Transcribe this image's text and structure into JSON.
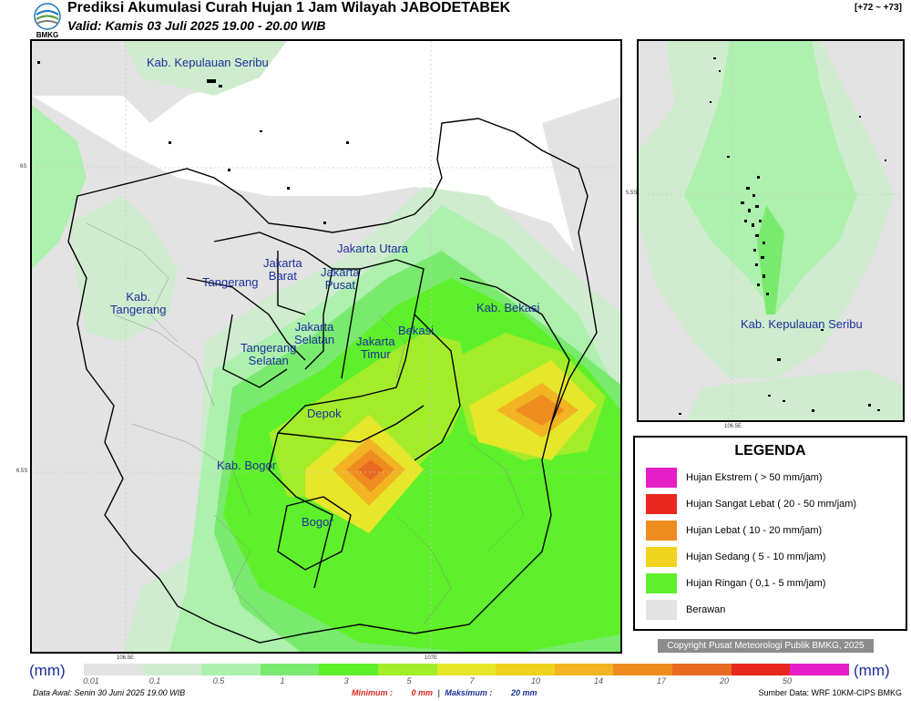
{
  "header": {
    "logo_text": "BMKG",
    "title": "Prediksi Akumulasi Curah Hujan 1 Jam Wilayah JABODETABEK",
    "valid": "Valid: Kamis 03 Juli 2025 19.00 - 20.00 WIB",
    "range": "[+72 ~ +73]"
  },
  "main_map": {
    "labels": {
      "kepulauan_seribu": "Kab. Kepulauan Seribu",
      "kab_tangerang": "Kab.\nTangerang",
      "tangerang": "Tangerang",
      "jakarta_barat": "Jakarta\nBarat",
      "jakarta_pusat": "Jakarta\nPusat",
      "jakarta_utara": "Jakarta Utara",
      "jakarta_selatan": "Jakarta\nSelatan",
      "jakarta_timur": "Jakarta\nTimur",
      "tangerang_selatan": "Tangerang\nSelatan",
      "bekasi": "Bekasi",
      "kab_bekasi": "Kab. Bekasi",
      "depok": "Depok",
      "kab_bogor": "Kab. Bogor",
      "bogor": "Bogor"
    },
    "axis_ticks": {
      "lat_top": "6S",
      "lat_bottom": "6.5S",
      "lon_left": "106.5E",
      "lon_right": "107E"
    }
  },
  "inset_map": {
    "label": "Kab. Kepulauan Seribu",
    "lat_tick": "5.5S",
    "lon_tick": "106.5E"
  },
  "legend": {
    "title": "LEGENDA",
    "items": [
      {
        "label": "Hujan Ekstrem ( > 50 mm/jam)",
        "color": "#e51ec7"
      },
      {
        "label": "Hujan Sangat Lebat ( 20 - 50 mm/jam)",
        "color": "#e8281e"
      },
      {
        "label": "Hujan Lebat ( 10 - 20 mm/jam)",
        "color": "#ef8c20"
      },
      {
        "label": "Hujan Sedang ( 5 - 10 mm/jam)",
        "color": "#f0d31e"
      },
      {
        "label": "Hujan Ringan ( 0,1 - 5 mm/jam)",
        "color": "#5ef02a"
      },
      {
        "label": "Berawan",
        "color": "#e3e3e3"
      }
    ]
  },
  "copyright": "Copyright Pusat Meteorologi Publik BMKG, 2025",
  "colorbar": {
    "unit": "(mm)",
    "ticks": [
      "0.01",
      "0.1",
      "0.5",
      "1",
      "3",
      "5",
      "7",
      "10",
      "14",
      "17",
      "20",
      "50"
    ],
    "colors": [
      "#e3e3e3",
      "#cfeccf",
      "#aef0ae",
      "#7aea6e",
      "#5ef02a",
      "#a3ec2a",
      "#e6e72a",
      "#f0d31e",
      "#f2b422",
      "#ef8c20",
      "#e86a22",
      "#e8281e",
      "#e51ec7"
    ]
  },
  "footer": {
    "data_awal": "Data Awal: Senin 30 Juni 2025 19.00 WIB",
    "minimum_label": "Minimum :",
    "minimum_value": "0 mm",
    "separator": "|",
    "maximum_label": "Maksimum :",
    "maximum_value": "20 mm",
    "source": "Sumber Data: WRF 10KM-CIPS BMKG"
  }
}
